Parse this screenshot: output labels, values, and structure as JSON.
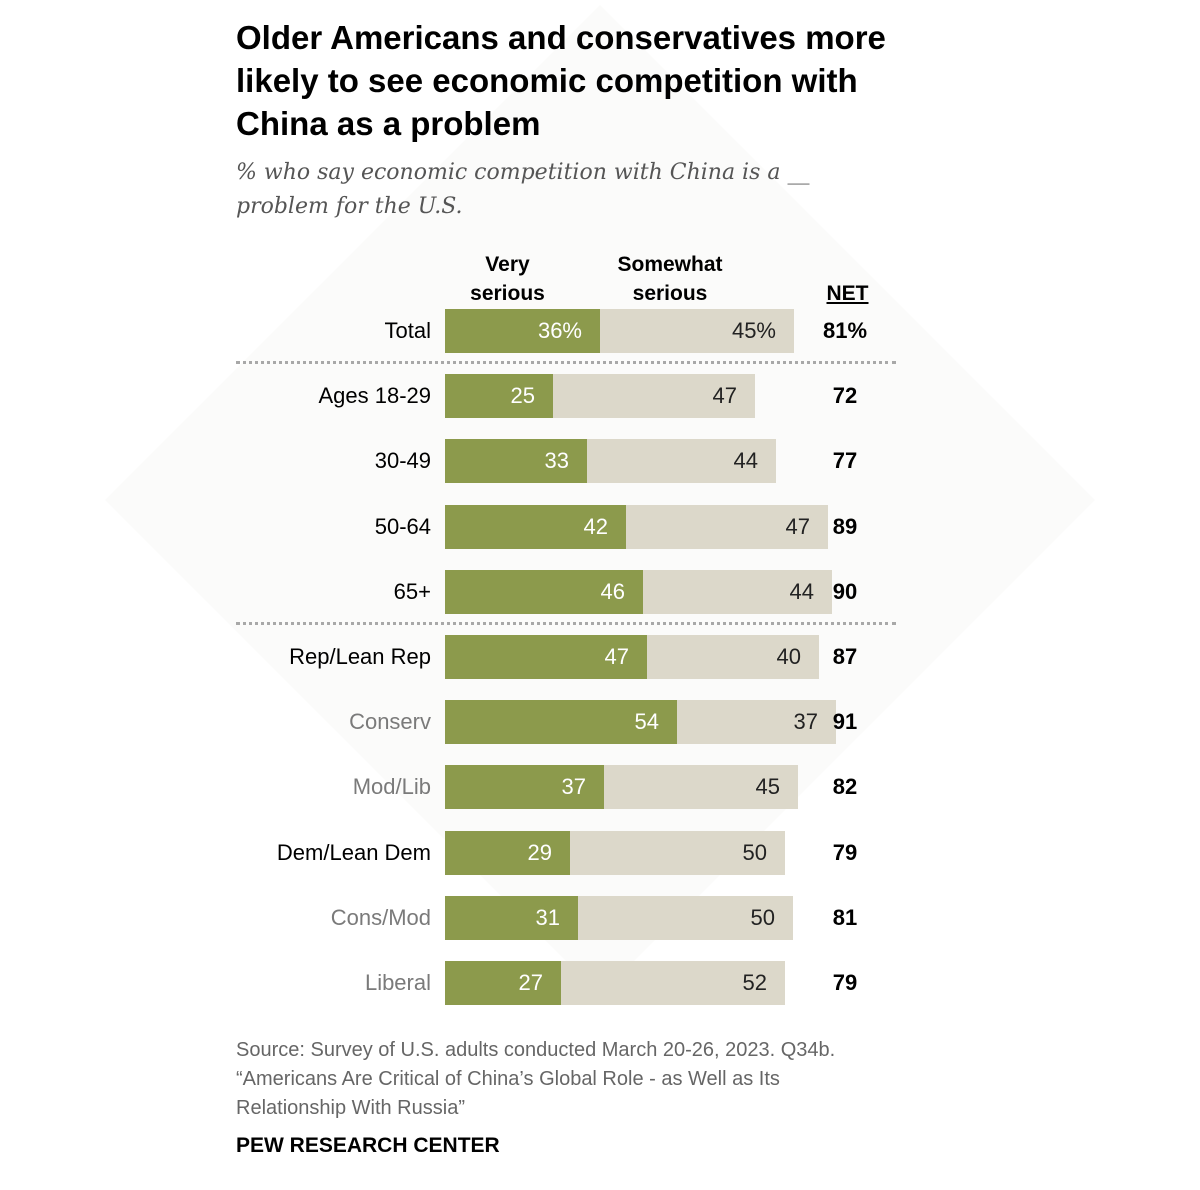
{
  "title": "Older Americans and conservatives more likely to see economic competition with China as a problem",
  "subtitle": "% who say economic competition with China is a __ problem for the U.S.",
  "headers": {
    "very_line1": "Very",
    "very_line2": "serious",
    "some_line1": "Somewhat",
    "some_line2": "serious",
    "net": "NET"
  },
  "colors": {
    "very_serious": "#8c9a4c",
    "somewhat_serious": "#dcd8ca"
  },
  "chart_data": {
    "type": "bar",
    "orientation": "horizontal",
    "stacked": true,
    "categories": [
      "Total",
      "Ages 18-29",
      "30-49",
      "50-64",
      "65+",
      "Rep/Lean Rep",
      "Conserv",
      "Mod/Lib",
      "Dem/Lean Dem",
      "Cons/Mod",
      "Liberal"
    ],
    "series": [
      {
        "name": "Very serious",
        "values": [
          36,
          25,
          33,
          42,
          46,
          47,
          54,
          37,
          29,
          31,
          27
        ]
      },
      {
        "name": "Somewhat serious",
        "values": [
          45,
          47,
          44,
          47,
          44,
          40,
          37,
          45,
          50,
          50,
          52
        ]
      }
    ],
    "net": [
      81,
      72,
      77,
      89,
      90,
      87,
      91,
      82,
      79,
      81,
      79
    ],
    "value_labels": {
      "very": [
        "36%",
        "25",
        "33",
        "42",
        "46",
        "47",
        "54",
        "37",
        "29",
        "31",
        "27"
      ],
      "some": [
        "45%",
        "47",
        "44",
        "47",
        "44",
        "40",
        "37",
        "45",
        "50",
        "50",
        "52"
      ],
      "net": [
        "81%",
        "72",
        "77",
        "89",
        "90",
        "87",
        "91",
        "82",
        "79",
        "81",
        "79"
      ]
    },
    "label_style": [
      "main",
      "main",
      "main",
      "main",
      "main",
      "main",
      "sub",
      "sub",
      "main",
      "sub",
      "sub"
    ]
  },
  "source": {
    "line1": "Source: Survey of U.S. adults conducted March 20-26, 2023. Q34b.",
    "line2": "“Americans Are Critical of China’s Global Role - as Well as Its",
    "line3": "Relationship With Russia”"
  },
  "brand": "PEW RESEARCH CENTER"
}
